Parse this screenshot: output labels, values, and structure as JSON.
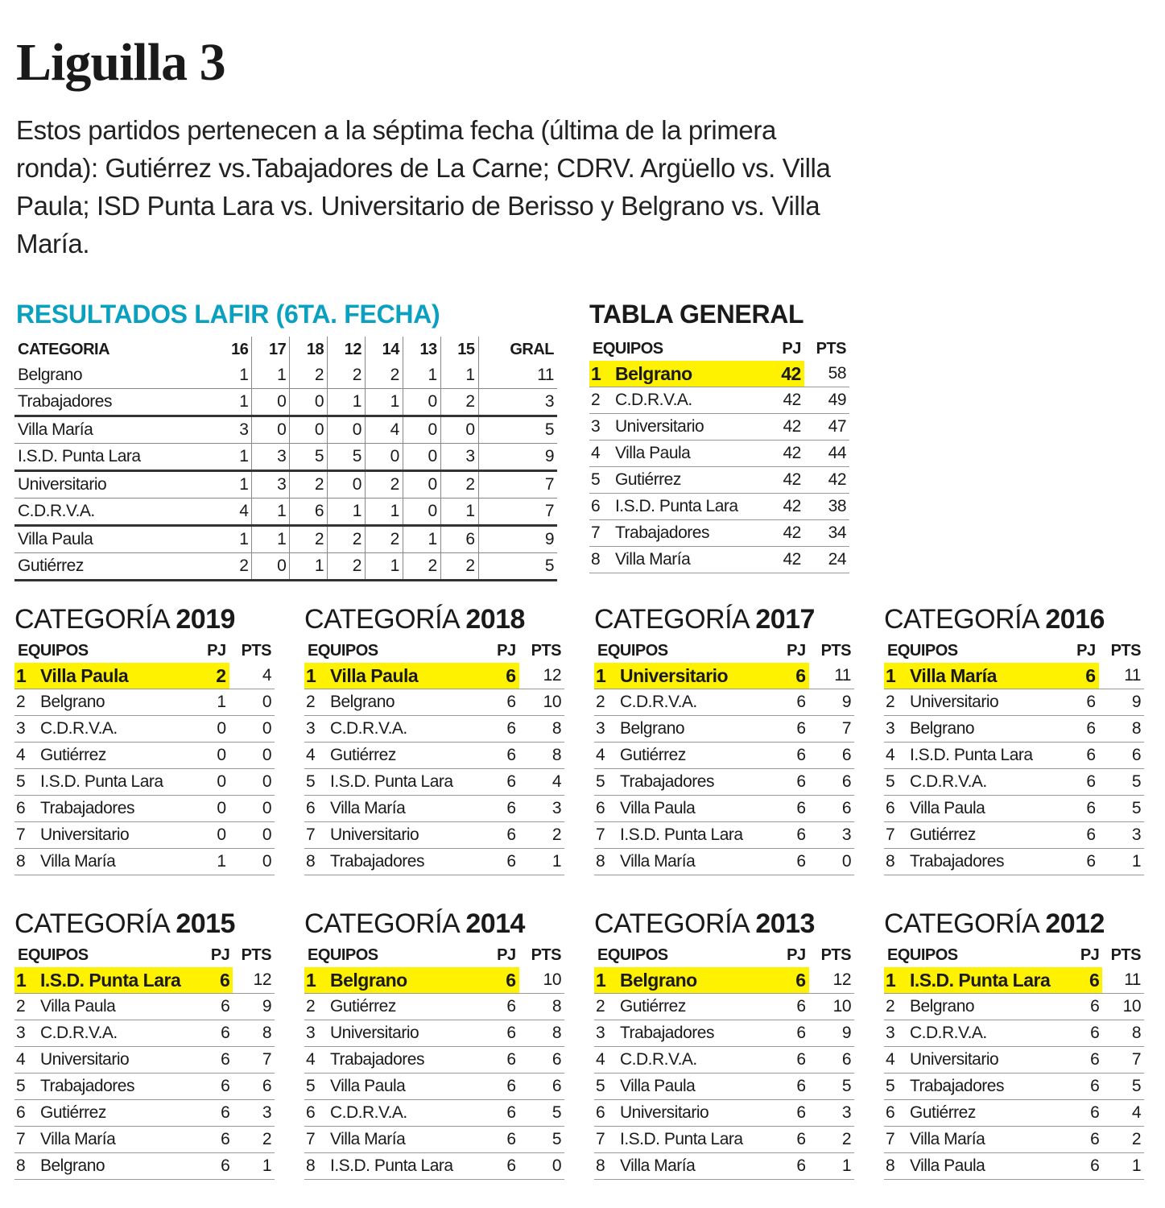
{
  "title": "Liguilla 3",
  "intro": "Estos partidos pertenecen a la séptima fecha (última de la primera ronda): Gutiérrez vs.Tabajadores de La Carne; CDRV. Argüello vs. Villa Paula; ISD Punta Lara vs. Universitario de Berisso y Belgrano vs. Villa María.",
  "colors": {
    "accent": "#0aa0c0",
    "highlight": "#fff200"
  },
  "results": {
    "title": "RESULTADOS LAFIR (6TA. FECHA)",
    "headers": [
      "CATEGORIA",
      "16",
      "17",
      "18",
      "12",
      "14",
      "13",
      "15",
      "GRAL"
    ],
    "rows": [
      [
        "Belgrano",
        "1",
        "1",
        "2",
        "2",
        "2",
        "1",
        "1",
        "11"
      ],
      [
        "Trabajadores",
        "1",
        "0",
        "0",
        "1",
        "1",
        "0",
        "2",
        "3"
      ],
      [
        "Villa María",
        "3",
        "0",
        "0",
        "0",
        "4",
        "0",
        "0",
        "5"
      ],
      [
        "I.S.D. Punta Lara",
        "1",
        "3",
        "5",
        "5",
        "0",
        "0",
        "3",
        "9"
      ],
      [
        "Universitario",
        "1",
        "3",
        "2",
        "0",
        "2",
        "0",
        "2",
        "7"
      ],
      [
        "C.D.R.V.A.",
        "4",
        "1",
        "6",
        "1",
        "1",
        "0",
        "1",
        "7"
      ],
      [
        "Villa Paula",
        "1",
        "1",
        "2",
        "2",
        "2",
        "1",
        "6",
        "9"
      ],
      [
        "Gutiérrez",
        "2",
        "0",
        "1",
        "2",
        "1",
        "2",
        "2",
        "5"
      ]
    ]
  },
  "general": {
    "title": "TABLA GENERAL",
    "headers": [
      "EQUIPOS",
      "PJ",
      "PTS"
    ],
    "rows": [
      [
        "1",
        "Belgrano",
        "42",
        "58"
      ],
      [
        "2",
        "C.D.R.V.A.",
        "42",
        "49"
      ],
      [
        "3",
        "Universitario",
        "42",
        "47"
      ],
      [
        "4",
        "Villa Paula",
        "42",
        "44"
      ],
      [
        "5",
        "Gutiérrez",
        "42",
        "42"
      ],
      [
        "6",
        "I.S.D. Punta Lara",
        "42",
        "38"
      ],
      [
        "7",
        "Trabajadores",
        "42",
        "34"
      ],
      [
        "8",
        "Villa María",
        "42",
        "24"
      ]
    ]
  },
  "category_label": "CATEGORÍA",
  "categories": [
    {
      "year": "2019",
      "headers": [
        "EQUIPOS",
        "PJ",
        "PTS"
      ],
      "rows": [
        [
          "1",
          "Villa Paula",
          "2",
          "4"
        ],
        [
          "2",
          "Belgrano",
          "1",
          "0"
        ],
        [
          "3",
          "C.D.R.V.A.",
          "0",
          "0"
        ],
        [
          "4",
          "Gutiérrez",
          "0",
          "0"
        ],
        [
          "5",
          "I.S.D. Punta Lara",
          "0",
          "0"
        ],
        [
          "6",
          "Trabajadores",
          "0",
          "0"
        ],
        [
          "7",
          "Universitario",
          "0",
          "0"
        ],
        [
          "8",
          "Villa María",
          "1",
          "0"
        ]
      ]
    },
    {
      "year": "2018",
      "headers": [
        "EQUIPOS",
        "PJ",
        "PTS"
      ],
      "rows": [
        [
          "1",
          "Villa Paula",
          "6",
          "12"
        ],
        [
          "2",
          "Belgrano",
          "6",
          "10"
        ],
        [
          "3",
          "C.D.R.V.A.",
          "6",
          "8"
        ],
        [
          "4",
          "Gutiérrez",
          "6",
          "8"
        ],
        [
          "5",
          "I.S.D. Punta Lara",
          "6",
          "4"
        ],
        [
          "6",
          "Villa María",
          "6",
          "3"
        ],
        [
          "7",
          "Universitario",
          "6",
          "2"
        ],
        [
          "8",
          "Trabajadores",
          "6",
          "1"
        ]
      ]
    },
    {
      "year": "2017",
      "headers": [
        "EQUIPOS",
        "PJ",
        "PTS"
      ],
      "rows": [
        [
          "1",
          "Universitario",
          "6",
          "11"
        ],
        [
          "2",
          "C.D.R.V.A.",
          "6",
          "9"
        ],
        [
          "3",
          "Belgrano",
          "6",
          "7"
        ],
        [
          "4",
          "Gutiérrez",
          "6",
          "6"
        ],
        [
          "5",
          "Trabajadores",
          "6",
          "6"
        ],
        [
          "6",
          "Villa Paula",
          "6",
          "6"
        ],
        [
          "7",
          "I.S.D. Punta Lara",
          "6",
          "3"
        ],
        [
          "8",
          "Villa María",
          "6",
          "0"
        ]
      ]
    },
    {
      "year": "2016",
      "headers": [
        "EQUIPOS",
        "PJ",
        "PTS"
      ],
      "rows": [
        [
          "1",
          "Villa María",
          "6",
          "11"
        ],
        [
          "2",
          "Universitario",
          "6",
          "9"
        ],
        [
          "3",
          "Belgrano",
          "6",
          "8"
        ],
        [
          "4",
          "I.S.D. Punta Lara",
          "6",
          "6"
        ],
        [
          "5",
          "C.D.R.V.A.",
          "6",
          "5"
        ],
        [
          "6",
          "Villa Paula",
          "6",
          "5"
        ],
        [
          "7",
          "Gutiérrez",
          "6",
          "3"
        ],
        [
          "8",
          "Trabajadores",
          "6",
          "1"
        ]
      ]
    },
    {
      "year": "2015",
      "headers": [
        "EQUIPOS",
        "PJ",
        "PTS"
      ],
      "rows": [
        [
          "1",
          "I.S.D. Punta Lara",
          "6",
          "12"
        ],
        [
          "2",
          "Villa Paula",
          "6",
          "9"
        ],
        [
          "3",
          "C.D.R.V.A.",
          "6",
          "8"
        ],
        [
          "4",
          "Universitario",
          "6",
          "7"
        ],
        [
          "5",
          "Trabajadores",
          "6",
          "6"
        ],
        [
          "6",
          "Gutiérrez",
          "6",
          "3"
        ],
        [
          "7",
          "Villa María",
          "6",
          "2"
        ],
        [
          "8",
          "Belgrano",
          "6",
          "1"
        ]
      ]
    },
    {
      "year": "2014",
      "headers": [
        "EQUIPOS",
        "PJ",
        "PTS"
      ],
      "rows": [
        [
          "1",
          "Belgrano",
          "6",
          "10"
        ],
        [
          "2",
          "Gutiérrez",
          "6",
          "8"
        ],
        [
          "3",
          "Universitario",
          "6",
          "8"
        ],
        [
          "4",
          "Trabajadores",
          "6",
          "6"
        ],
        [
          "5",
          "Villa Paula",
          "6",
          "6"
        ],
        [
          "6",
          "C.D.R.V.A.",
          "6",
          "5"
        ],
        [
          "7",
          "Villa María",
          "6",
          "5"
        ],
        [
          "8",
          "I.S.D. Punta Lara",
          "6",
          "0"
        ]
      ]
    },
    {
      "year": "2013",
      "headers": [
        "EQUIPOS",
        "PJ",
        "PTS"
      ],
      "rows": [
        [
          "1",
          "Belgrano",
          "6",
          "12"
        ],
        [
          "2",
          "Gutiérrez",
          "6",
          "10"
        ],
        [
          "3",
          "Trabajadores",
          "6",
          "9"
        ],
        [
          "4",
          "C.D.R.V.A.",
          "6",
          "6"
        ],
        [
          "5",
          "Villa Paula",
          "6",
          "5"
        ],
        [
          "6",
          "Universitario",
          "6",
          "3"
        ],
        [
          "7",
          "I.S.D. Punta Lara",
          "6",
          "2"
        ],
        [
          "8",
          "Villa María",
          "6",
          "1"
        ]
      ]
    },
    {
      "year": "2012",
      "headers": [
        "EQUIPOS",
        "PJ",
        "PTS"
      ],
      "rows": [
        [
          "1",
          "I.S.D. Punta Lara",
          "6",
          "11"
        ],
        [
          "2",
          "Belgrano",
          "6",
          "10"
        ],
        [
          "3",
          "C.D.R.V.A.",
          "6",
          "8"
        ],
        [
          "4",
          "Universitario",
          "6",
          "7"
        ],
        [
          "5",
          "Trabajadores",
          "6",
          "5"
        ],
        [
          "6",
          "Gutiérrez",
          "6",
          "4"
        ],
        [
          "7",
          "Villa María",
          "6",
          "2"
        ],
        [
          "8",
          "Villa Paula",
          "6",
          "1"
        ]
      ]
    }
  ]
}
